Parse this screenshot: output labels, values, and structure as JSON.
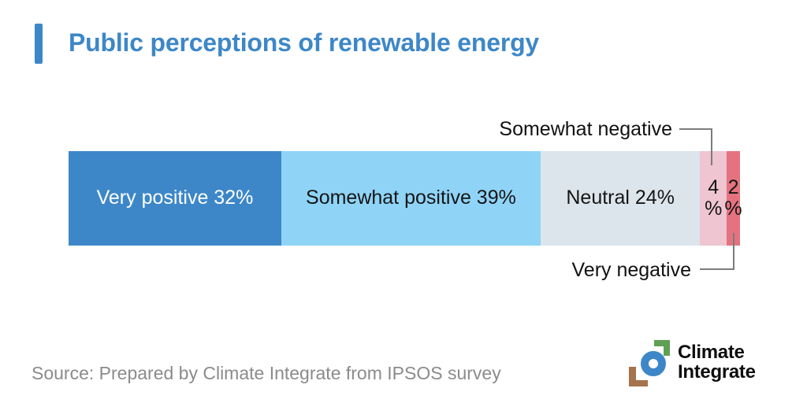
{
  "header": {
    "title": "Public perceptions of renewable energy",
    "accent_color": "#3d87c8"
  },
  "chart_data": {
    "type": "bar",
    "subtype": "horizontal_stacked_percentage",
    "title": "Public perceptions of renewable energy",
    "unit": "%",
    "categories": [
      "Very positive",
      "Somewhat positive",
      "Neutral",
      "Somewhat negative",
      "Very negative"
    ],
    "values": [
      32,
      39,
      24,
      4,
      2
    ],
    "xlim": [
      0,
      100
    ],
    "axis": "none",
    "legend_position": "none",
    "segments": [
      {
        "name": "Very positive",
        "value": 32,
        "label": "Very positive 32%",
        "color": "#3d87c8",
        "text_color": "#ffffff"
      },
      {
        "name": "Somewhat positive",
        "value": 39,
        "label": "Somewhat positive 39%",
        "color": "#8fd4f7",
        "text_color": "#151515"
      },
      {
        "name": "Neutral",
        "value": 24,
        "label": "Neutral 24%",
        "color": "#dce5eb",
        "text_color": "#151515"
      },
      {
        "name": "Somewhat negative",
        "value": 4,
        "label": "4 %",
        "color": "#eec5d1",
        "text_color": "#151515"
      },
      {
        "name": "Very negative",
        "value": 2,
        "label": "2 %",
        "color": "#e4737f",
        "text_color": "#151515"
      }
    ],
    "callouts": [
      {
        "target": "Somewhat negative",
        "label": "Somewhat negative",
        "position": "above"
      },
      {
        "target": "Very negative",
        "label": "Very negative",
        "position": "below"
      }
    ],
    "callout_line_color": "#7c7c7c"
  },
  "footer": {
    "source": "Source: Prepared by Climate Integrate from IPSOS survey",
    "source_color": "#8b8b8b"
  },
  "logo": {
    "name": "Climate Integrate",
    "line1": "Climate",
    "line2": "Integrate",
    "colors": {
      "ring": "#3d87c8",
      "corner_green": "#5fa054",
      "corner_brown": "#a5734c",
      "text": "#0e0e0e"
    }
  }
}
